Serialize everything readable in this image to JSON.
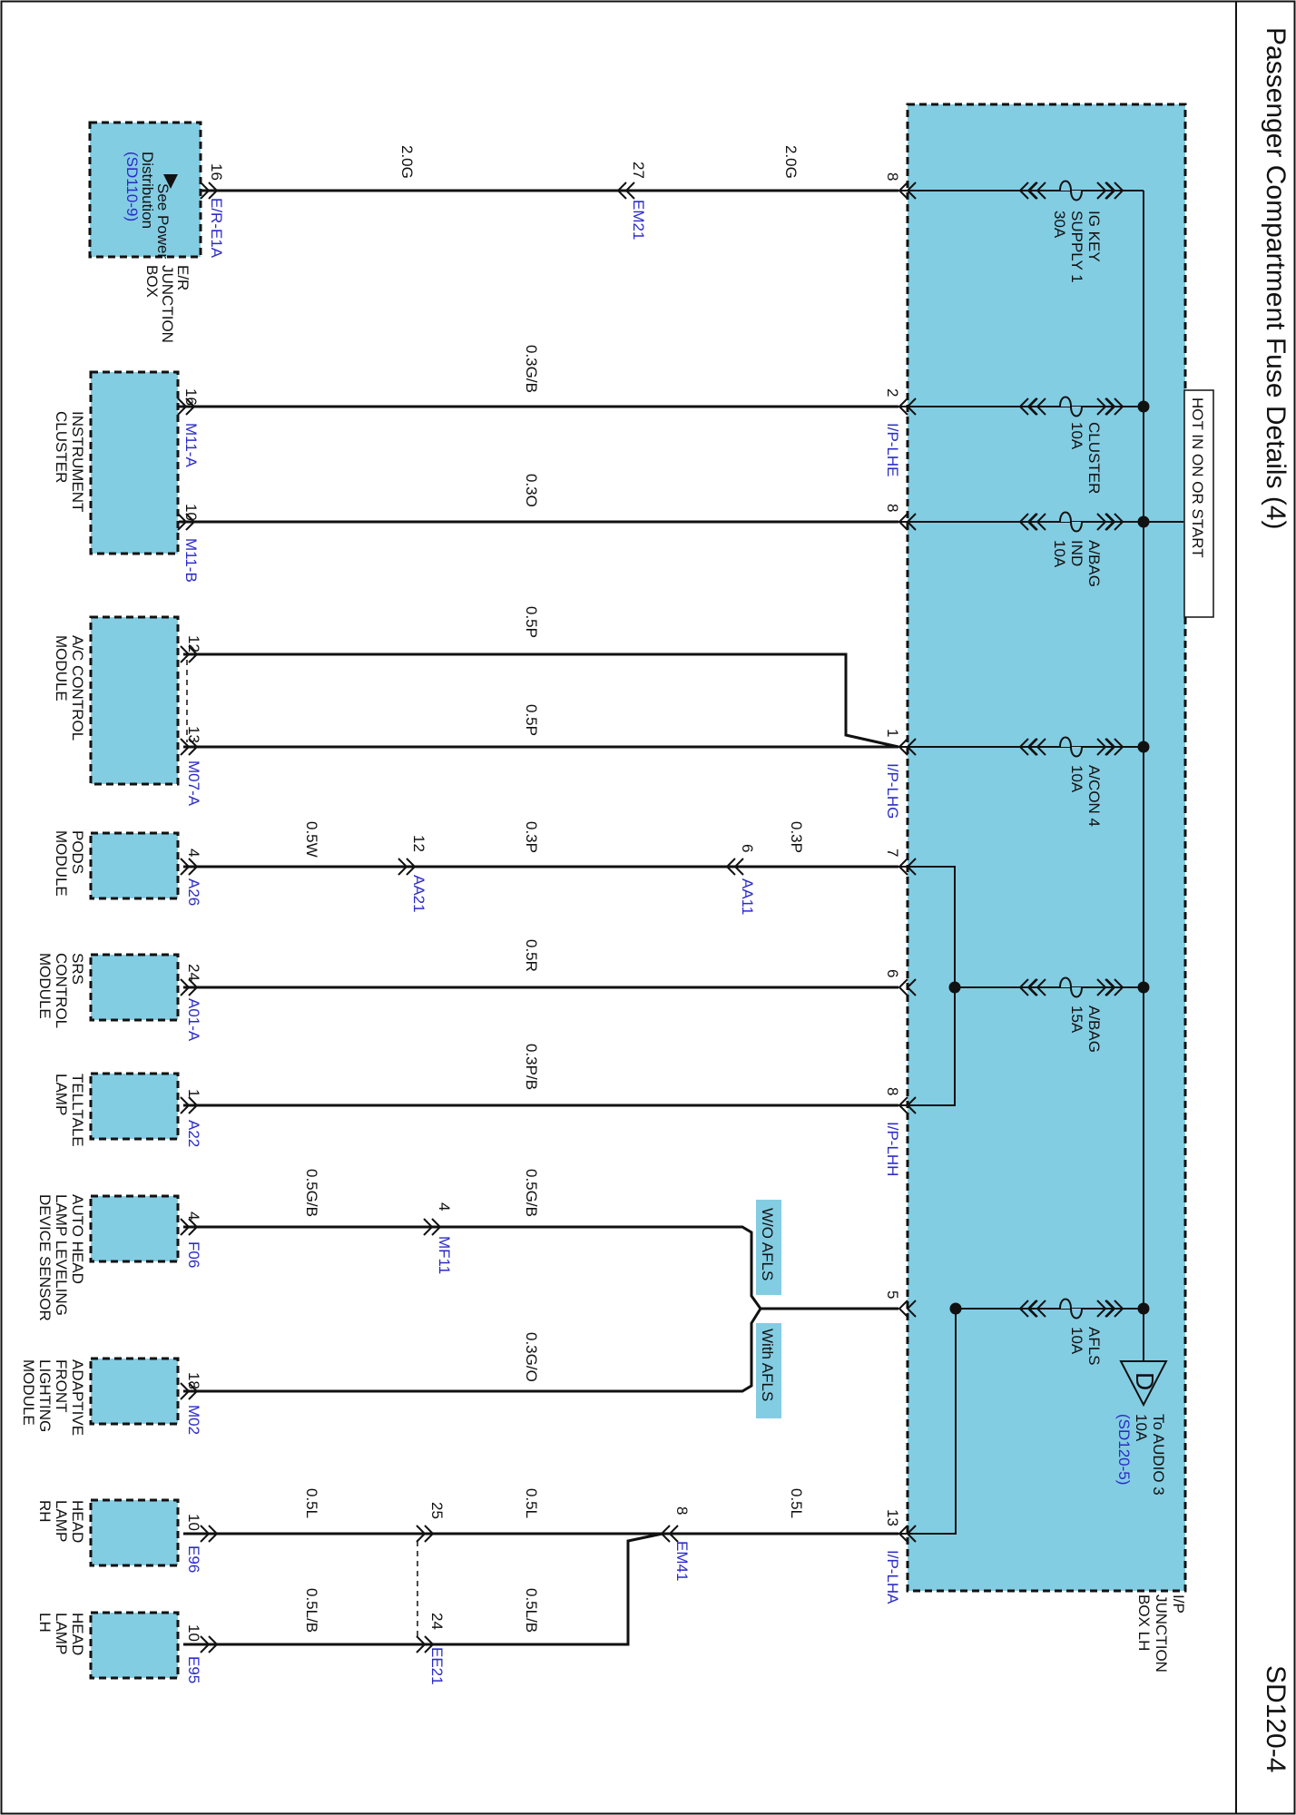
{
  "page": {
    "title": "Passenger Compartment Fuse Details (4)",
    "code": "SD120-4"
  },
  "ip_box": {
    "label": [
      "I/P",
      "JUNCTION",
      "BOX LH"
    ],
    "hot_label": "HOT IN ON OR START"
  },
  "fuses": [
    {
      "name": [
        "IG KEY",
        "SUPPLY 1",
        "30A"
      ]
    },
    {
      "name": [
        "CLUSTER",
        "10A"
      ]
    },
    {
      "name": [
        "A/BAG",
        "IND",
        "10A"
      ]
    },
    {
      "name": [
        "A/CON 4",
        "10A"
      ]
    },
    {
      "name": [
        "A/BAG",
        "15A"
      ]
    },
    {
      "name": [
        "AFLS",
        "10A"
      ]
    }
  ],
  "audio_ref": {
    "letter": "D",
    "text": [
      "To AUDIO 3",
      "10A"
    ],
    "ref": "(SD120-5)"
  },
  "components": [
    {
      "name": [
        "E/R",
        "JUNCTION",
        "BOX"
      ],
      "inner": [
        "See Power",
        "Distribution"
      ],
      "inner_ref": "(SD110-9)"
    },
    {
      "name": [
        "INSTRUMENT",
        "CLUSTER"
      ]
    },
    {
      "name": [
        "A/C CONTROL",
        "MODULE"
      ]
    },
    {
      "name": [
        "PODS",
        "MODULE"
      ]
    },
    {
      "name": [
        "SRS",
        "CONTROL",
        "MODULE"
      ]
    },
    {
      "name": [
        "TELLTALE",
        "LAMP"
      ]
    },
    {
      "name": [
        "AUTO HEAD",
        "LAMP LEVELING",
        "DEVICE SENSOR"
      ]
    },
    {
      "name": [
        "ADAPTIVE",
        "FRONT",
        "LIGHTING",
        "MODULE"
      ]
    },
    {
      "name": [
        "HEAD",
        "LAMP",
        "RH"
      ]
    },
    {
      "name": [
        "HEAD",
        "LAMP",
        "LH"
      ]
    }
  ],
  "ip_pins": {
    "p1": "8",
    "p2": "2",
    "p3": "8",
    "p4": "1",
    "p5": "7",
    "p6": "6",
    "p7": "8",
    "p8": "5",
    "p9": "13"
  },
  "ip_connectors": {
    "lhe": "I/P-LHE",
    "lhg": "I/P-LHG",
    "lhh": "I/P-LHH",
    "lha": "I/P-LHA"
  },
  "comp_pins": {
    "er": {
      "pin": "16",
      "conn": "E/R-E1A"
    },
    "ic1": {
      "pin": "16",
      "conn": "M11-A"
    },
    "ic2": {
      "pin": "10",
      "conn": "M11-B"
    },
    "ac1": {
      "pin": "12"
    },
    "ac2": {
      "pin": "13",
      "conn": "M07-A"
    },
    "pods": {
      "pin": "4",
      "conn": "A26"
    },
    "srs": {
      "pin": "24",
      "conn": "A01-A"
    },
    "tt": {
      "pin": "1",
      "conn": "A22"
    },
    "ahl": {
      "pin": "4",
      "conn": "F06"
    },
    "afls": {
      "pin": "18",
      "conn": "M02"
    },
    "hrh": {
      "pin": "10",
      "conn": "E96"
    },
    "hlh": {
      "pin": "10",
      "conn": "E95"
    }
  },
  "inline": {
    "em21": {
      "pin": "27",
      "conn": "EM21"
    },
    "aa11": {
      "pin": "6",
      "conn": "AA11"
    },
    "aa21": {
      "pin": "12",
      "conn": "AA21"
    },
    "mf11": {
      "pin": "4",
      "conn": "MF11"
    },
    "em41": {
      "pin": "8",
      "conn": "EM41"
    },
    "ee21a": {
      "pin": "25"
    },
    "ee21b": {
      "pin": "24",
      "conn": "EE21"
    }
  },
  "wires": {
    "w1a": "2.0G",
    "w1b": "2.0G",
    "w2": "0.3G/B",
    "w3": "0.3O",
    "w4a": "0.5P",
    "w4b": "0.5P",
    "w5a": "0.3P",
    "w5b": "0.3P",
    "w5c": "0.5W",
    "w6": "0.5R",
    "w7": "0.3P/B",
    "w8a": "0.5G/B",
    "w8b": "0.5G/B",
    "w9": "0.3G/O",
    "w10a": "0.5L",
    "w10b": "0.5L",
    "w10c": "0.5L",
    "w11a": "0.5L/B",
    "w11b": "0.5L/B"
  },
  "options": {
    "wo_afls": "W/O AFLS",
    "with_afls": "With AFLS"
  },
  "colors": {
    "box_fill": "#83CDE3",
    "wire": "#111111",
    "link": "#2B2BC8"
  }
}
